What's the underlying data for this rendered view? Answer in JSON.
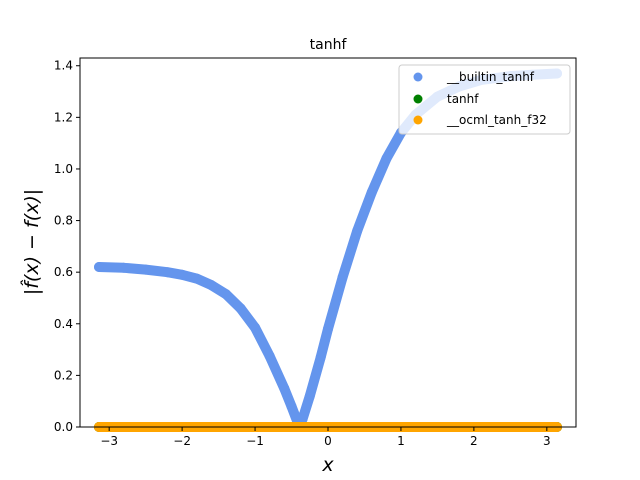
{
  "chart_data": {
    "type": "scatter",
    "title": "tanhf",
    "xlabel": "x",
    "ylabel": "|f̂(x) − f(x)|",
    "xlim": [
      -3.4,
      3.4
    ],
    "ylim": [
      0,
      1.43
    ],
    "xticks": [
      -3,
      -2,
      -1,
      0,
      1,
      2,
      3
    ],
    "xtick_labels": [
      "−3",
      "−2",
      "−1",
      "0",
      "1",
      "2",
      "3"
    ],
    "yticks": [
      0.0,
      0.2,
      0.4,
      0.6,
      0.8,
      1.0,
      1.2,
      1.4
    ],
    "ytick_labels": [
      "0.0",
      "0.2",
      "0.4",
      "0.6",
      "0.8",
      "1.0",
      "1.2",
      "1.4"
    ],
    "grid": false,
    "legend_position": "top-right",
    "series": [
      {
        "name": "__builtin_tanhf",
        "color": "#6495ED",
        "points": [
          [
            -3.14,
            0.62
          ],
          [
            -2.8,
            0.617
          ],
          [
            -2.5,
            0.61
          ],
          [
            -2.2,
            0.6
          ],
          [
            -2.0,
            0.59
          ],
          [
            -1.8,
            0.575
          ],
          [
            -1.6,
            0.55
          ],
          [
            -1.4,
            0.515
          ],
          [
            -1.2,
            0.46
          ],
          [
            -1.0,
            0.385
          ],
          [
            -0.8,
            0.275
          ],
          [
            -0.6,
            0.15
          ],
          [
            -0.5,
            0.08
          ],
          [
            -0.42,
            0.02
          ],
          [
            -0.35,
            0.03
          ],
          [
            -0.25,
            0.12
          ],
          [
            -0.1,
            0.27
          ],
          [
            0.0,
            0.38
          ],
          [
            0.2,
            0.58
          ],
          [
            0.4,
            0.76
          ],
          [
            0.6,
            0.91
          ],
          [
            0.8,
            1.04
          ],
          [
            1.0,
            1.14
          ],
          [
            1.2,
            1.21
          ],
          [
            1.5,
            1.28
          ],
          [
            1.8,
            1.32
          ],
          [
            2.1,
            1.345
          ],
          [
            2.5,
            1.36
          ],
          [
            2.8,
            1.365
          ],
          [
            3.14,
            1.37
          ]
        ]
      },
      {
        "name": "tanhf",
        "color": "#008000",
        "points": [
          [
            -3.14,
            0.0
          ],
          [
            3.14,
            0.0
          ]
        ]
      },
      {
        "name": "__ocml_tanh_f32",
        "color": "#FFA500",
        "points": [
          [
            -3.14,
            0.0
          ],
          [
            3.14,
            0.0
          ]
        ]
      }
    ]
  }
}
